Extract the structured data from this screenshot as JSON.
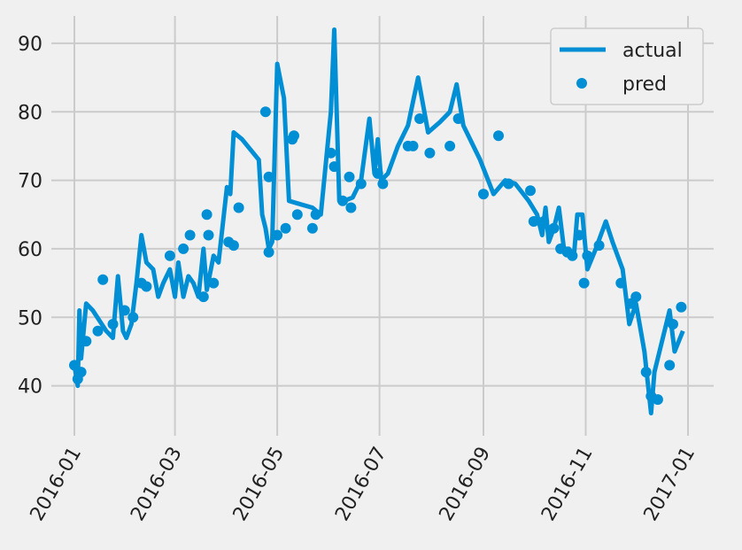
{
  "chart_data": {
    "type": "line",
    "title": "",
    "xlabel": "",
    "ylabel": "",
    "x_axis_type": "date",
    "xlim": [
      "2016-01-01",
      "2017-01-01"
    ],
    "ylim": [
      34,
      94
    ],
    "grid": true,
    "legend_position": "top-right",
    "x_ticks": [
      "2016-01",
      "2016-03",
      "2016-05",
      "2016-07",
      "2016-09",
      "2016-11",
      "2017-01"
    ],
    "y_ticks": [
      40,
      50,
      60,
      70,
      80,
      90
    ],
    "accent_color": "#008fd5",
    "series": [
      {
        "name": "actual",
        "kind": "line",
        "points": [
          [
            "2016-01-01",
            43
          ],
          [
            "2016-01-03",
            40
          ],
          [
            "2016-01-04",
            51
          ],
          [
            "2016-01-05",
            44
          ],
          [
            "2016-01-08",
            52
          ],
          [
            "2016-01-12",
            51
          ],
          [
            "2016-01-20",
            48
          ],
          [
            "2016-01-24",
            47
          ],
          [
            "2016-01-27",
            56
          ],
          [
            "2016-01-30",
            48
          ],
          [
            "2016-02-01",
            47
          ],
          [
            "2016-02-04",
            49
          ],
          [
            "2016-02-07",
            55
          ],
          [
            "2016-02-10",
            62
          ],
          [
            "2016-02-13",
            58
          ],
          [
            "2016-02-17",
            57
          ],
          [
            "2016-02-20",
            53
          ],
          [
            "2016-02-23",
            55
          ],
          [
            "2016-02-27",
            57
          ],
          [
            "2016-03-01",
            53
          ],
          [
            "2016-03-03",
            58
          ],
          [
            "2016-03-06",
            53
          ],
          [
            "2016-03-09",
            56
          ],
          [
            "2016-03-12",
            55
          ],
          [
            "2016-03-15",
            53
          ],
          [
            "2016-03-18",
            60
          ],
          [
            "2016-03-20",
            54
          ],
          [
            "2016-03-24",
            59
          ],
          [
            "2016-03-27",
            58
          ],
          [
            "2016-04-01",
            69
          ],
          [
            "2016-04-03",
            68
          ],
          [
            "2016-04-05",
            77
          ],
          [
            "2016-04-10",
            76
          ],
          [
            "2016-04-20",
            73
          ],
          [
            "2016-04-22",
            65
          ],
          [
            "2016-04-24",
            63
          ],
          [
            "2016-04-26",
            60
          ],
          [
            "2016-04-28",
            61
          ],
          [
            "2016-05-01",
            87
          ],
          [
            "2016-05-05",
            82
          ],
          [
            "2016-05-08",
            67
          ],
          [
            "2016-05-15",
            66.5
          ],
          [
            "2016-05-22",
            66
          ],
          [
            "2016-05-27",
            65
          ],
          [
            "2016-06-02",
            80
          ],
          [
            "2016-06-04",
            92
          ],
          [
            "2016-06-07",
            67
          ],
          [
            "2016-06-10",
            67
          ],
          [
            "2016-06-15",
            67.5
          ],
          [
            "2016-06-18",
            69
          ],
          [
            "2016-06-20",
            70
          ],
          [
            "2016-06-25",
            79
          ],
          [
            "2016-06-28",
            71
          ],
          [
            "2016-06-30",
            76
          ],
          [
            "2016-07-02",
            70
          ],
          [
            "2016-07-06",
            71
          ],
          [
            "2016-07-12",
            75
          ],
          [
            "2016-07-18",
            78
          ],
          [
            "2016-07-24",
            85
          ],
          [
            "2016-07-30",
            77
          ],
          [
            "2016-08-06",
            78.5
          ],
          [
            "2016-08-12",
            80
          ],
          [
            "2016-08-16",
            84
          ],
          [
            "2016-08-20",
            78
          ],
          [
            "2016-08-30",
            73
          ],
          [
            "2016-09-07",
            68
          ],
          [
            "2016-09-14",
            70
          ],
          [
            "2016-09-20",
            69.5
          ],
          [
            "2016-09-28",
            67
          ],
          [
            "2016-10-03",
            65
          ],
          [
            "2016-10-06",
            62
          ],
          [
            "2016-10-08",
            66
          ],
          [
            "2016-10-10",
            61
          ],
          [
            "2016-10-13",
            63
          ],
          [
            "2016-10-16",
            66
          ],
          [
            "2016-10-19",
            60
          ],
          [
            "2016-10-22",
            60
          ],
          [
            "2016-10-25",
            59
          ],
          [
            "2016-10-27",
            65
          ],
          [
            "2016-10-30",
            65
          ],
          [
            "2016-11-02",
            57
          ],
          [
            "2016-11-07",
            60
          ],
          [
            "2016-11-13",
            64
          ],
          [
            "2016-11-17",
            61
          ],
          [
            "2016-11-23",
            57
          ],
          [
            "2016-11-27",
            49
          ],
          [
            "2016-12-01",
            52
          ],
          [
            "2016-12-06",
            45
          ],
          [
            "2016-12-10",
            36
          ],
          [
            "2016-12-12",
            42
          ],
          [
            "2016-12-16",
            46
          ],
          [
            "2016-12-21",
            51
          ],
          [
            "2016-12-24",
            45
          ],
          [
            "2016-12-29",
            48
          ]
        ]
      },
      {
        "name": "pred",
        "kind": "scatter",
        "points": [
          [
            "2016-01-01",
            43
          ],
          [
            "2016-01-03",
            41
          ],
          [
            "2016-01-05",
            42
          ],
          [
            "2016-01-08",
            46.5
          ],
          [
            "2016-01-15",
            48
          ],
          [
            "2016-01-18",
            55.5
          ],
          [
            "2016-01-24",
            49
          ],
          [
            "2016-01-31",
            51
          ],
          [
            "2016-02-05",
            50
          ],
          [
            "2016-02-10",
            55
          ],
          [
            "2016-02-13",
            54.5
          ],
          [
            "2016-02-27",
            59
          ],
          [
            "2016-03-06",
            60
          ],
          [
            "2016-03-10",
            62
          ],
          [
            "2016-03-18",
            53
          ],
          [
            "2016-03-20",
            65
          ],
          [
            "2016-03-21",
            62
          ],
          [
            "2016-03-24",
            55
          ],
          [
            "2016-04-02",
            61
          ],
          [
            "2016-04-05",
            60.5
          ],
          [
            "2016-04-08",
            66
          ],
          [
            "2016-04-24",
            80
          ],
          [
            "2016-04-26",
            70.5
          ],
          [
            "2016-04-26",
            59.5
          ],
          [
            "2016-05-01",
            62
          ],
          [
            "2016-05-06",
            63
          ],
          [
            "2016-05-10",
            76
          ],
          [
            "2016-05-11",
            76.5
          ],
          [
            "2016-05-13",
            65
          ],
          [
            "2016-05-22",
            63
          ],
          [
            "2016-05-24",
            65
          ],
          [
            "2016-06-02",
            74
          ],
          [
            "2016-06-04",
            72
          ],
          [
            "2016-06-09",
            67
          ],
          [
            "2016-06-13",
            70.5
          ],
          [
            "2016-06-14",
            66
          ],
          [
            "2016-06-20",
            69.5
          ],
          [
            "2016-06-30",
            71
          ],
          [
            "2016-07-03",
            69.5
          ],
          [
            "2016-07-18",
            75
          ],
          [
            "2016-07-21",
            75
          ],
          [
            "2016-07-25",
            79
          ],
          [
            "2016-07-31",
            74
          ],
          [
            "2016-08-12",
            75
          ],
          [
            "2016-08-17",
            79
          ],
          [
            "2016-09-01",
            68
          ],
          [
            "2016-09-10",
            76.5
          ],
          [
            "2016-09-16",
            69.5
          ],
          [
            "2016-09-29",
            68.5
          ],
          [
            "2016-10-01",
            64
          ],
          [
            "2016-10-07",
            64
          ],
          [
            "2016-10-13",
            63
          ],
          [
            "2016-10-17",
            60
          ],
          [
            "2016-10-21",
            59.5
          ],
          [
            "2016-10-24",
            59
          ],
          [
            "2016-10-28",
            62
          ],
          [
            "2016-10-31",
            55
          ],
          [
            "2016-11-02",
            59
          ],
          [
            "2016-11-09",
            60.5
          ],
          [
            "2016-11-22",
            55
          ],
          [
            "2016-11-28",
            52
          ],
          [
            "2016-12-01",
            53
          ],
          [
            "2016-12-07",
            42
          ],
          [
            "2016-12-10",
            38.5
          ],
          [
            "2016-12-14",
            38
          ],
          [
            "2016-12-21",
            43
          ],
          [
            "2016-12-23",
            49
          ],
          [
            "2016-12-28",
            51.5
          ]
        ]
      }
    ]
  }
}
